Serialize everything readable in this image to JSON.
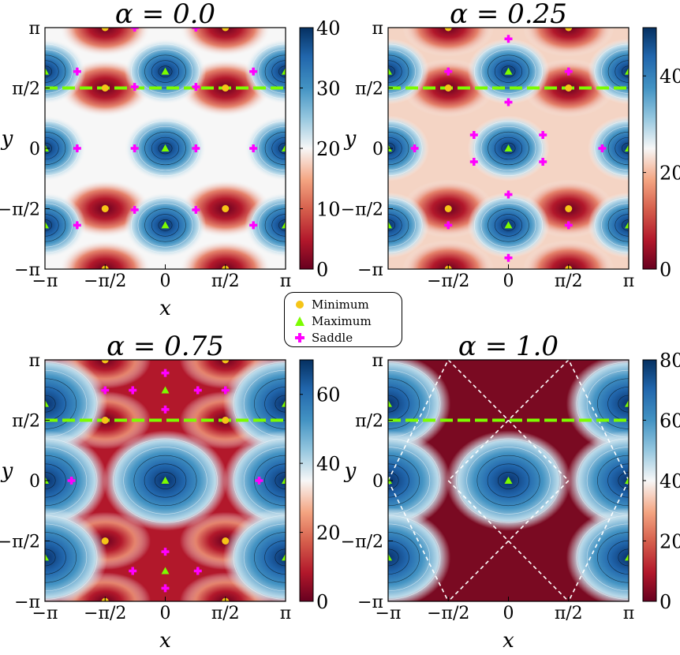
{
  "chart_data": [
    {
      "type": "heatmap",
      "title": "α = 0.0",
      "xlabel": "x",
      "ylabel": "y",
      "xlim": [
        -3.14159,
        3.14159
      ],
      "ylim": [
        -3.14159,
        3.14159
      ],
      "xticks": [
        "−π",
        "−π/2",
        "0",
        "π/2",
        "π"
      ],
      "yticks": [
        "−π",
        "−π/2",
        "0",
        "π/2",
        "π"
      ],
      "colorbar": {
        "range": [
          0,
          40
        ],
        "ticks": [
          "0",
          "10",
          "20",
          "30",
          "40"
        ]
      },
      "alpha": 0.0,
      "dashed_line_y": 1.5708,
      "minima": [
        [
          -1.5708,
          1.5708
        ],
        [
          1.5708,
          1.5708
        ],
        [
          -1.5708,
          -1.5708
        ],
        [
          1.5708,
          -1.5708
        ],
        [
          -1.5708,
          3.14159
        ],
        [
          1.5708,
          3.14159
        ],
        [
          -1.5708,
          -3.14159
        ],
        [
          1.5708,
          -3.14159
        ]
      ],
      "maxima": [
        [
          0,
          2.0
        ],
        [
          0,
          0
        ],
        [
          0,
          -2.0
        ],
        [
          -3.14159,
          2.0
        ],
        [
          -3.14159,
          0
        ],
        [
          -3.14159,
          -2.0
        ],
        [
          3.14159,
          2.0
        ],
        [
          3.14159,
          0
        ],
        [
          3.14159,
          -2.0
        ]
      ],
      "saddles": [
        [
          -0.8,
          1.6
        ],
        [
          0.8,
          1.6
        ],
        [
          -0.8,
          -1.6
        ],
        [
          0.8,
          -1.6
        ],
        [
          -0.8,
          0
        ],
        [
          0.8,
          0
        ],
        [
          -2.3,
          2.0
        ],
        [
          2.3,
          2.0
        ],
        [
          -2.3,
          0
        ],
        [
          2.3,
          0
        ],
        [
          -2.3,
          -2.0
        ],
        [
          2.3,
          -2.0
        ],
        [
          -0.8,
          3.14159
        ],
        [
          0.8,
          3.14159
        ]
      ]
    },
    {
      "type": "heatmap",
      "title": "α = 0.25",
      "xlabel": "",
      "ylabel": "y",
      "xlim": [
        -3.14159,
        3.14159
      ],
      "ylim": [
        -3.14159,
        3.14159
      ],
      "xticks": [
        "",
        "−π/2",
        "0",
        "π/2",
        "π"
      ],
      "yticks": [
        "−π",
        "−π/2",
        "0",
        "π/2",
        "π"
      ],
      "colorbar": {
        "range": [
          0,
          50
        ],
        "ticks": [
          "0",
          "20",
          "40"
        ]
      },
      "alpha": 0.25,
      "dashed_line_y": 1.5708,
      "minima": [
        [
          -1.5708,
          1.5708
        ],
        [
          1.5708,
          1.5708
        ],
        [
          -1.5708,
          -1.5708
        ],
        [
          1.5708,
          -1.5708
        ],
        [
          -1.5708,
          3.14159
        ],
        [
          1.5708,
          3.14159
        ],
        [
          -1.5708,
          -3.14159
        ],
        [
          1.5708,
          -3.14159
        ]
      ],
      "maxima": [
        [
          0,
          2.0
        ],
        [
          0,
          0
        ],
        [
          0,
          -2.0
        ],
        [
          -3.14159,
          2.0
        ],
        [
          -3.14159,
          0
        ],
        [
          -3.14159,
          -2.0
        ],
        [
          3.14159,
          2.0
        ],
        [
          3.14159,
          0
        ],
        [
          3.14159,
          -2.0
        ]
      ],
      "saddles": [
        [
          0,
          2.85
        ],
        [
          0,
          1.2
        ],
        [
          0,
          -1.2
        ],
        [
          0,
          -2.85
        ],
        [
          -1.5708,
          2.0
        ],
        [
          1.5708,
          2.0
        ],
        [
          -1.5708,
          -2.0
        ],
        [
          1.5708,
          -2.0
        ],
        [
          -2.45,
          0
        ],
        [
          2.45,
          0
        ],
        [
          -0.9,
          0.35
        ],
        [
          0.9,
          0.35
        ],
        [
          -0.9,
          -0.35
        ],
        [
          0.9,
          -0.35
        ]
      ]
    },
    {
      "type": "heatmap",
      "title": "α = 0.75",
      "xlabel": "x",
      "ylabel": "y",
      "xlim": [
        -3.14159,
        3.14159
      ],
      "ylim": [
        -3.14159,
        3.14159
      ],
      "xticks": [
        "−π",
        "−π/2",
        "0",
        "π/2",
        "π"
      ],
      "yticks": [
        "−π",
        "−π/2",
        "0",
        "π/2",
        "π"
      ],
      "colorbar": {
        "range": [
          0,
          70
        ],
        "ticks": [
          "0",
          "20",
          "40",
          "60"
        ]
      },
      "alpha": 0.75,
      "dashed_line_y": 1.5708,
      "minima": [
        [
          -1.5708,
          1.5708
        ],
        [
          1.5708,
          1.5708
        ],
        [
          -1.5708,
          -1.5708
        ],
        [
          1.5708,
          -1.5708
        ],
        [
          -1.5708,
          3.14159
        ],
        [
          1.5708,
          3.14159
        ],
        [
          -1.5708,
          -3.14159
        ],
        [
          1.5708,
          -3.14159
        ]
      ],
      "maxima": [
        [
          0,
          0
        ],
        [
          -3.14159,
          2.0
        ],
        [
          3.14159,
          2.0
        ],
        [
          -3.14159,
          0
        ],
        [
          3.14159,
          0
        ],
        [
          -3.14159,
          -2.0
        ],
        [
          3.14159,
          -2.0
        ],
        [
          0,
          2.35
        ],
        [
          0,
          -2.35
        ]
      ],
      "saddles": [
        [
          -0.85,
          2.35
        ],
        [
          0.85,
          2.35
        ],
        [
          -0.85,
          -2.35
        ],
        [
          0.85,
          -2.35
        ],
        [
          0,
          2.8
        ],
        [
          0,
          -2.8
        ],
        [
          0,
          1.85
        ],
        [
          0,
          -1.85
        ],
        [
          -2.45,
          0
        ],
        [
          2.45,
          0
        ],
        [
          -1.5708,
          2.35
        ],
        [
          1.5708,
          2.35
        ]
      ]
    },
    {
      "type": "heatmap",
      "title": "α = 1.0",
      "xlabel": "x",
      "ylabel": "y",
      "xlim": [
        -3.14159,
        3.14159
      ],
      "ylim": [
        -3.14159,
        3.14159
      ],
      "xticks": [
        "−π",
        "−π/2",
        "0",
        "π/2",
        "π"
      ],
      "yticks": [
        "−π",
        "−π/2",
        "0",
        "π/2",
        "π"
      ],
      "colorbar": {
        "range": [
          0,
          80
        ],
        "ticks": [
          "0",
          "20",
          "40",
          "60",
          "80"
        ]
      },
      "alpha": 1.0,
      "dashed_line_y": 1.5708,
      "maxima": [
        [
          0,
          0
        ],
        [
          -3.14159,
          2.0
        ],
        [
          3.14159,
          2.0
        ],
        [
          -3.14159,
          0
        ],
        [
          3.14159,
          0
        ],
        [
          -3.14159,
          -2.0
        ],
        [
          3.14159,
          -2.0
        ]
      ],
      "minima": [],
      "saddles": [],
      "white_dashed_diamond": true
    }
  ],
  "legend": {
    "items": [
      {
        "label": "Minimum",
        "marker": "circle",
        "color": "#f5c518"
      },
      {
        "label": "Maximum",
        "marker": "triangle",
        "color": "#7cfc00"
      },
      {
        "label": "Saddle",
        "marker": "plus",
        "color": "#ff00ff"
      }
    ]
  },
  "colors": {
    "dashed_line": "#7cfc00",
    "minimum": "#f5c518",
    "maximum": "#7cfc00",
    "saddle": "#ff00ff"
  }
}
